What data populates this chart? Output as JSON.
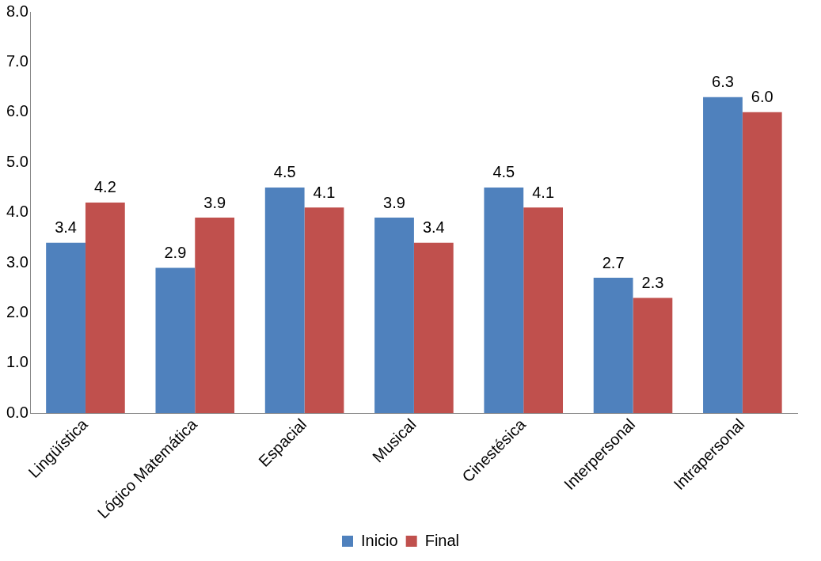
{
  "chart_data": {
    "type": "bar",
    "categories": [
      "Lingüística",
      "Lógico Matemática",
      "Espacial",
      "Musical",
      "Cinestésica",
      "Interpersonal",
      "Intrapersonal"
    ],
    "series": [
      {
        "name": "Inicio",
        "color": "#4f81bd",
        "values": [
          3.4,
          2.9,
          4.5,
          3.9,
          4.5,
          2.7,
          6.3
        ],
        "value_labels": [
          "3.4",
          "2.9",
          "4.5",
          "3.9",
          "4.5",
          "2.7",
          "6.3"
        ]
      },
      {
        "name": "Final",
        "color": "#c0504d",
        "values": [
          4.2,
          3.9,
          4.1,
          3.4,
          4.1,
          2.3,
          6.0
        ],
        "value_labels": [
          "4.2",
          "3.9",
          "4.1",
          "3.4",
          "4.1",
          "2.3",
          "6.0"
        ]
      }
    ],
    "ylim": [
      0,
      8
    ],
    "yticks": [
      {
        "value": 0,
        "label": "0.0"
      },
      {
        "value": 1,
        "label": "1.0"
      },
      {
        "value": 2,
        "label": "2.0"
      },
      {
        "value": 3,
        "label": "3.0"
      },
      {
        "value": 4,
        "label": "4.0"
      },
      {
        "value": 5,
        "label": "5.0"
      },
      {
        "value": 6,
        "label": "6.0"
      },
      {
        "value": 7,
        "label": "7.0"
      },
      {
        "value": 8,
        "label": "8.0"
      }
    ],
    "grid": false,
    "legend": "bottom"
  }
}
